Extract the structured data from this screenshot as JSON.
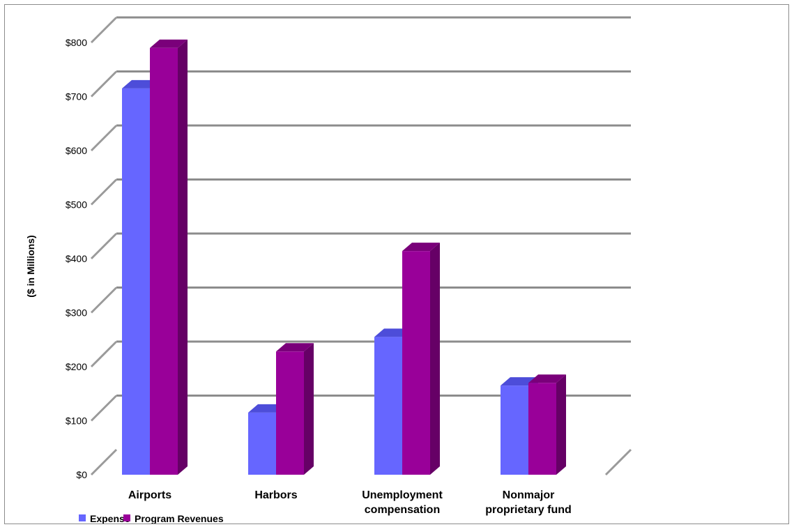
{
  "chart_data": {
    "type": "bar",
    "title": "",
    "xlabel": "",
    "ylabel": "($ in Millions)",
    "ylim": [
      0,
      800
    ],
    "yticks": [
      0,
      100,
      200,
      300,
      400,
      500,
      600,
      700,
      800
    ],
    "ytick_labels": [
      "$0",
      "$100",
      "$200",
      "$300",
      "$400",
      "$500",
      "$600",
      "$700",
      "$800"
    ],
    "categories": [
      [
        "Airports"
      ],
      [
        "Harbors"
      ],
      [
        "Unemployment",
        "compensation"
      ],
      [
        "Nonmajor",
        "proprietary fund"
      ]
    ],
    "series": [
      {
        "name": "Expense",
        "values": [
          715,
          115,
          255,
          165
        ],
        "color": "#6666ff",
        "side_color": "#3333cc",
        "top_color": "#4d4dd9"
      },
      {
        "name": "Program Revenues",
        "values": [
          790,
          228,
          414,
          170
        ],
        "color": "#990099",
        "side_color": "#660066",
        "top_color": "#7a007a"
      }
    ],
    "grid": true,
    "legend": "bottom-left"
  }
}
